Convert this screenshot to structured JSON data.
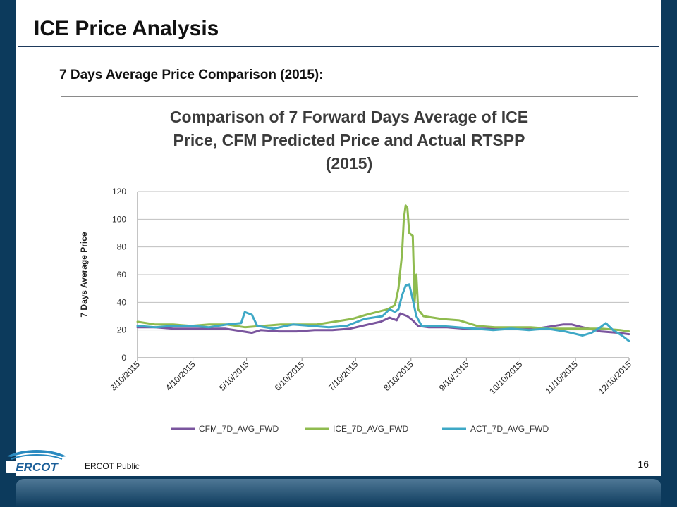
{
  "slide": {
    "title": "ICE Price Analysis",
    "subtitle": "7 Days Average Price Comparison (2015):",
    "footer": "ERCOT Public",
    "page_number": "16",
    "logo_text": "ERCOT"
  },
  "colors": {
    "background": "#0c3a5c",
    "cfm": "#7a559e",
    "ice": "#8fbb4f",
    "act": "#3ea8c6",
    "grid": "#bfbfbf"
  },
  "chart_data": {
    "type": "line",
    "title": [
      "Comparison of 7 Forward Days Average of  ICE",
      "Price, CFM Predicted Price and Actual RTSPP",
      "(2015)"
    ],
    "xlabel": "",
    "ylabel": "7 Days Average Price",
    "ylim": [
      0,
      120
    ],
    "yticks": [
      "0",
      "20",
      "40",
      "60",
      "80",
      "100",
      "120"
    ],
    "grid": true,
    "legend_position": "bottom",
    "x_tick_labels": [
      "3/10/2015",
      "4/10/2015",
      "5/10/2015",
      "6/10/2015",
      "7/10/2015",
      "8/10/2015",
      "9/10/2015",
      "10/10/2015",
      "11/10/2015",
      "12/10/2015"
    ],
    "x_tick_dates": [
      "2015-03-10",
      "2015-04-10",
      "2015-05-10",
      "2015-06-10",
      "2015-07-10",
      "2015-08-10",
      "2015-09-10",
      "2015-10-10",
      "2015-11-10",
      "2015-12-10"
    ],
    "x_range": [
      "2015-03-10",
      "2015-12-10"
    ],
    "series": [
      {
        "name": "CFM_7D_AVG_FWD",
        "color": "#7a559e",
        "points": [
          [
            "2015-03-10",
            22
          ],
          [
            "2015-03-20",
            22
          ],
          [
            "2015-03-30",
            21
          ],
          [
            "2015-04-08",
            21
          ],
          [
            "2015-04-18",
            21
          ],
          [
            "2015-04-28",
            21
          ],
          [
            "2015-05-08",
            19
          ],
          [
            "2015-05-13",
            18
          ],
          [
            "2015-05-18",
            20
          ],
          [
            "2015-05-28",
            19
          ],
          [
            "2015-06-07",
            19
          ],
          [
            "2015-06-17",
            20
          ],
          [
            "2015-06-27",
            20
          ],
          [
            "2015-07-07",
            21
          ],
          [
            "2015-07-17",
            24
          ],
          [
            "2015-07-24",
            26
          ],
          [
            "2015-07-29",
            29
          ],
          [
            "2015-08-02",
            27
          ],
          [
            "2015-08-04",
            32
          ],
          [
            "2015-08-08",
            30
          ],
          [
            "2015-08-11",
            27
          ],
          [
            "2015-08-14",
            23
          ],
          [
            "2015-08-20",
            22
          ],
          [
            "2015-08-30",
            22
          ],
          [
            "2015-09-09",
            21
          ],
          [
            "2015-09-19",
            21
          ],
          [
            "2015-09-29",
            21
          ],
          [
            "2015-10-09",
            21
          ],
          [
            "2015-10-19",
            21
          ],
          [
            "2015-10-29",
            23
          ],
          [
            "2015-11-03",
            24
          ],
          [
            "2015-11-08",
            24
          ],
          [
            "2015-11-14",
            22
          ],
          [
            "2015-11-24",
            19
          ],
          [
            "2015-12-04",
            18
          ],
          [
            "2015-12-10",
            17
          ]
        ]
      },
      {
        "name": "ICE_7D_AVG_FWD",
        "color": "#8fbb4f",
        "points": [
          [
            "2015-03-10",
            26
          ],
          [
            "2015-03-20",
            24
          ],
          [
            "2015-03-30",
            24
          ],
          [
            "2015-04-09",
            23
          ],
          [
            "2015-04-19",
            24
          ],
          [
            "2015-04-29",
            24
          ],
          [
            "2015-05-09",
            22
          ],
          [
            "2015-05-19",
            23
          ],
          [
            "2015-05-29",
            24
          ],
          [
            "2015-06-08",
            24
          ],
          [
            "2015-06-18",
            24
          ],
          [
            "2015-06-28",
            26
          ],
          [
            "2015-07-08",
            28
          ],
          [
            "2015-07-16",
            31
          ],
          [
            "2015-07-22",
            33
          ],
          [
            "2015-07-28",
            35
          ],
          [
            "2015-08-01",
            38
          ],
          [
            "2015-08-03",
            50
          ],
          [
            "2015-08-05",
            75
          ],
          [
            "2015-08-06",
            100
          ],
          [
            "2015-08-07",
            110
          ],
          [
            "2015-08-08",
            108
          ],
          [
            "2015-08-09",
            90
          ],
          [
            "2015-08-11",
            88
          ],
          [
            "2015-08-12",
            40
          ],
          [
            "2015-08-13",
            60
          ],
          [
            "2015-08-14",
            35
          ],
          [
            "2015-08-17",
            30
          ],
          [
            "2015-08-27",
            28
          ],
          [
            "2015-09-06",
            27
          ],
          [
            "2015-09-16",
            23
          ],
          [
            "2015-09-26",
            22
          ],
          [
            "2015-10-06",
            22
          ],
          [
            "2015-10-16",
            22
          ],
          [
            "2015-10-26",
            21
          ],
          [
            "2015-11-05",
            21
          ],
          [
            "2015-11-15",
            21
          ],
          [
            "2015-11-25",
            21
          ],
          [
            "2015-12-05",
            20
          ],
          [
            "2015-12-10",
            19
          ]
        ]
      },
      {
        "name": "ACT_7D_AVG_FWD",
        "color": "#3ea8c6",
        "points": [
          [
            "2015-03-10",
            23
          ],
          [
            "2015-03-20",
            22
          ],
          [
            "2015-03-30",
            23
          ],
          [
            "2015-04-09",
            23
          ],
          [
            "2015-04-19",
            22
          ],
          [
            "2015-04-29",
            24
          ],
          [
            "2015-05-07",
            25
          ],
          [
            "2015-05-09",
            33
          ],
          [
            "2015-05-13",
            31
          ],
          [
            "2015-05-16",
            23
          ],
          [
            "2015-05-25",
            21
          ],
          [
            "2015-06-05",
            24
          ],
          [
            "2015-06-15",
            23
          ],
          [
            "2015-06-25",
            22
          ],
          [
            "2015-07-05",
            23
          ],
          [
            "2015-07-15",
            28
          ],
          [
            "2015-07-25",
            30
          ],
          [
            "2015-07-29",
            35
          ],
          [
            "2015-08-01",
            33
          ],
          [
            "2015-08-03",
            35
          ],
          [
            "2015-08-05",
            45
          ],
          [
            "2015-08-07",
            52
          ],
          [
            "2015-08-09",
            53
          ],
          [
            "2015-08-11",
            42
          ],
          [
            "2015-08-13",
            30
          ],
          [
            "2015-08-16",
            23
          ],
          [
            "2015-08-26",
            23
          ],
          [
            "2015-09-05",
            22
          ],
          [
            "2015-09-15",
            21
          ],
          [
            "2015-09-25",
            20
          ],
          [
            "2015-10-05",
            21
          ],
          [
            "2015-10-15",
            20
          ],
          [
            "2015-10-25",
            21
          ],
          [
            "2015-11-04",
            19
          ],
          [
            "2015-11-14",
            16
          ],
          [
            "2015-11-19",
            18
          ],
          [
            "2015-11-24",
            22
          ],
          [
            "2015-11-27",
            25
          ],
          [
            "2015-12-01",
            20
          ],
          [
            "2015-12-06",
            16
          ],
          [
            "2015-12-10",
            12
          ]
        ]
      }
    ]
  }
}
